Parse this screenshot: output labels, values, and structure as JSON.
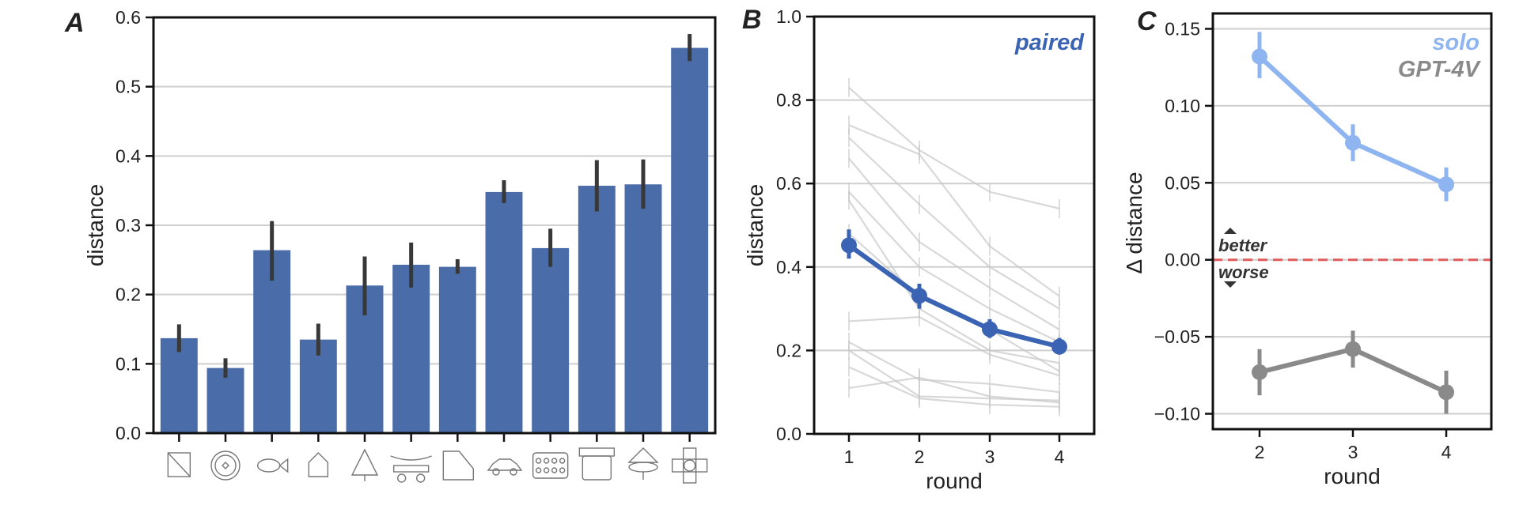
{
  "chart_data": [
    {
      "panel_label": "A",
      "type": "bar",
      "categories": [
        "icon-1",
        "icon-2",
        "icon-3",
        "icon-4",
        "icon-5",
        "icon-6",
        "icon-7",
        "icon-8",
        "icon-9",
        "icon-10",
        "icon-11",
        "icon-12"
      ],
      "values": [
        0.137,
        0.094,
        0.264,
        0.135,
        0.213,
        0.243,
        0.24,
        0.348,
        0.267,
        0.357,
        0.359,
        0.556
      ],
      "err_low": [
        0.117,
        0.08,
        0.22,
        0.112,
        0.17,
        0.21,
        0.23,
        0.332,
        0.24,
        0.32,
        0.324,
        0.537
      ],
      "err_high": [
        0.157,
        0.108,
        0.306,
        0.158,
        0.255,
        0.275,
        0.251,
        0.365,
        0.295,
        0.394,
        0.395,
        0.576
      ],
      "xlabel": "",
      "ylabel": "distance",
      "ylim": [
        0,
        0.6
      ],
      "yticks": [
        "0.0",
        "0.1",
        "0.2",
        "0.3",
        "0.4",
        "0.5",
        "0.6"
      ],
      "ytick_values": [
        0,
        0.1,
        0.2,
        0.3,
        0.4,
        0.5,
        0.6
      ],
      "grid": "horizontal",
      "colors": {
        "bar": "#4a6ca9",
        "error": "#383838"
      }
    },
    {
      "panel_label": "B",
      "type": "line",
      "x": [
        1,
        2,
        3,
        4
      ],
      "xticks": [
        "1",
        "2",
        "3",
        "4"
      ],
      "xlabel": "round",
      "ylabel": "distance",
      "ylim": [
        0,
        1.0
      ],
      "yticks": [
        "0.0",
        "0.2",
        "0.4",
        "0.6",
        "0.8",
        "1.0"
      ],
      "ytick_values": [
        0,
        0.2,
        0.4,
        0.6,
        0.8,
        1.0
      ],
      "grid": "horizontal",
      "legend_position": "top-right",
      "series": [
        {
          "name": "paired",
          "values": [
            0.452,
            0.331,
            0.251,
            0.209
          ],
          "err_low": [
            0.42,
            0.3,
            0.23,
            0.19
          ],
          "err_high": [
            0.49,
            0.36,
            0.275,
            0.23
          ],
          "color": "#3b63b3"
        }
      ],
      "background_lines": [
        [
          0.83,
          0.68,
          0.58,
          0.54
        ],
        [
          0.74,
          0.67,
          0.45,
          0.33
        ],
        [
          0.71,
          0.55,
          0.4,
          0.3
        ],
        [
          0.66,
          0.46,
          0.35,
          0.25
        ],
        [
          0.58,
          0.4,
          0.3,
          0.22
        ],
        [
          0.56,
          0.3,
          0.2,
          0.17
        ],
        [
          0.48,
          0.33,
          0.25,
          0.15
        ],
        [
          0.27,
          0.28,
          0.19,
          0.14
        ],
        [
          0.22,
          0.13,
          0.12,
          0.1
        ],
        [
          0.2,
          0.09,
          0.085,
          0.08
        ],
        [
          0.16,
          0.085,
          0.07,
          0.065
        ],
        [
          0.11,
          0.135,
          0.09,
          0.075
        ]
      ],
      "background_color": "#c8c8c8"
    },
    {
      "panel_label": "C",
      "type": "line",
      "x": [
        2,
        3,
        4
      ],
      "xticks": [
        "2",
        "3",
        "4"
      ],
      "xlabel": "round",
      "ylabel": "Δ distance",
      "ylim": [
        -0.11,
        0.16
      ],
      "yticks": [
        "0.15",
        "0.10",
        "0.05",
        "0.00",
        "−0.05",
        "−0.10"
      ],
      "ytick_values": [
        0.15,
        0.1,
        0.05,
        0.0,
        -0.05,
        -0.1
      ],
      "grid": "horizontal",
      "legend_position": "top-right",
      "reference_line": {
        "y": 0,
        "color": "#e05a5a",
        "style": "dashed"
      },
      "annotations": {
        "above": "better",
        "below": "worse"
      },
      "series": [
        {
          "name": "solo",
          "values": [
            0.132,
            0.076,
            0.049
          ],
          "err_low": [
            0.118,
            0.064,
            0.038
          ],
          "err_high": [
            0.148,
            0.088,
            0.06
          ],
          "color": "#8eb5f0"
        },
        {
          "name": "GPT-4V",
          "values": [
            -0.073,
            -0.058,
            -0.086
          ],
          "err_low": [
            -0.088,
            -0.07,
            -0.1
          ],
          "err_high": [
            -0.058,
            -0.046,
            -0.072
          ],
          "color": "#8a8a8a"
        }
      ]
    }
  ]
}
